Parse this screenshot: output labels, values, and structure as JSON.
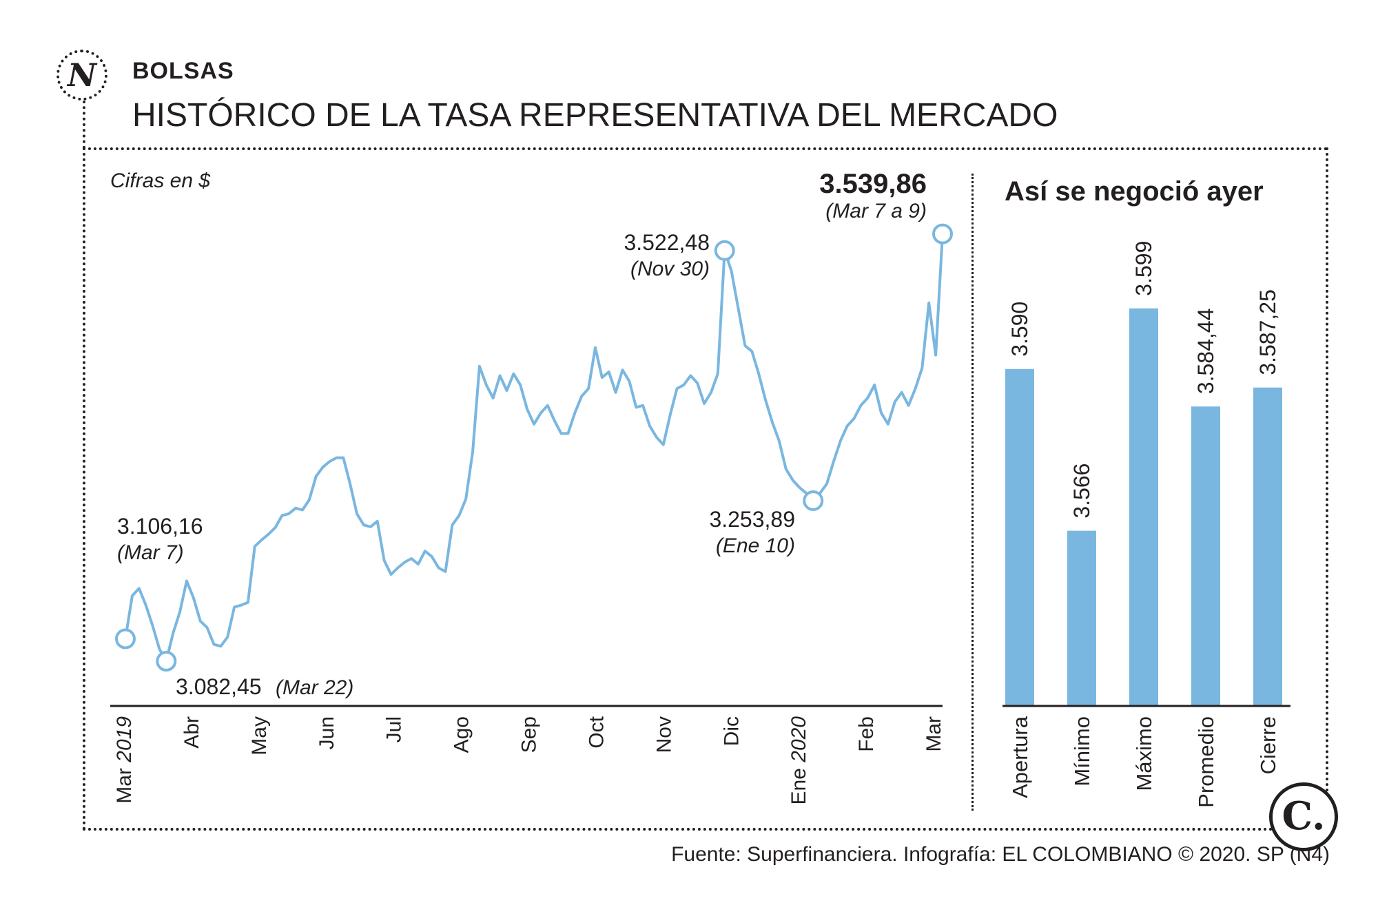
{
  "header": {
    "logo_letter": "N",
    "section": "BOLSAS",
    "title": "HISTÓRICO DE LA TASA REPRESENTATIVA DEL MERCADO"
  },
  "colors": {
    "line": "#7ab7e0",
    "bar": "#7ab7e0",
    "text": "#231f20"
  },
  "chart_data": [
    {
      "type": "line",
      "units_note": "Cifras en $",
      "x_labels": [
        {
          "month": "Mar",
          "year": "2019"
        },
        {
          "month": "Abr",
          "year": ""
        },
        {
          "month": "May",
          "year": ""
        },
        {
          "month": "Jun",
          "year": ""
        },
        {
          "month": "Jul",
          "year": ""
        },
        {
          "month": "Ago",
          "year": ""
        },
        {
          "month": "Sep",
          "year": ""
        },
        {
          "month": "Oct",
          "year": ""
        },
        {
          "month": "Nov",
          "year": ""
        },
        {
          "month": "Dic",
          "year": ""
        },
        {
          "month": "Ene",
          "year": "2020"
        },
        {
          "month": "Feb",
          "year": ""
        },
        {
          "month": "Mar",
          "year": ""
        }
      ],
      "series": [
        {
          "values": [
            3106,
            3152,
            3160,
            3142,
            3120,
            3095,
            3082,
            3112,
            3135,
            3168,
            3150,
            3125,
            3118,
            3100,
            3098,
            3108,
            3140,
            3142,
            3145,
            3205,
            3212,
            3218,
            3225,
            3238,
            3240,
            3246,
            3244,
            3255,
            3280,
            3290,
            3296,
            3300,
            3300,
            3272,
            3240,
            3228,
            3226,
            3232,
            3190,
            3175,
            3182,
            3188,
            3192,
            3186,
            3200,
            3194,
            3182,
            3178,
            3228,
            3238,
            3256,
            3306,
            3398,
            3378,
            3364,
            3388,
            3372,
            3390,
            3378,
            3352,
            3336,
            3348,
            3356,
            3340,
            3326,
            3326,
            3348,
            3366,
            3374,
            3418,
            3386,
            3392,
            3370,
            3394,
            3382,
            3354,
            3356,
            3334,
            3322,
            3314,
            3346,
            3374,
            3378,
            3388,
            3380,
            3358,
            3370,
            3390,
            3522,
            3500,
            3460,
            3420,
            3414,
            3390,
            3362,
            3338,
            3318,
            3288,
            3276,
            3268,
            3262,
            3254,
            3262,
            3272,
            3296,
            3318,
            3334,
            3342,
            3356,
            3364,
            3378,
            3348,
            3336,
            3360,
            3370,
            3356,
            3374,
            3396,
            3466,
            3410,
            3539.86
          ]
        }
      ],
      "annotations": [
        {
          "value": "3.106,16",
          "date": "(Mar 7)"
        },
        {
          "value": "3.082,45",
          "date": "(Mar 22)"
        },
        {
          "value": "3.522,48",
          "date": "(Nov 30)"
        },
        {
          "value": "3.253,89",
          "date": "(Ene 10)"
        },
        {
          "value": "3.539,86",
          "date": "(Mar 7 a 9)"
        }
      ],
      "grid": false
    },
    {
      "type": "bar",
      "title": "Así se negoció ayer",
      "categories": [
        "Apertura",
        "Mínimo",
        "Máximo",
        "Promedio",
        "Cierre"
      ],
      "values": [
        3590,
        3566,
        3599,
        3584.44,
        3587.25
      ],
      "value_labels": [
        "3.590",
        "3.566",
        "3.599",
        "3.584,44",
        "3.587,25"
      ]
    }
  ],
  "footer": {
    "source": "Fuente: Superfinanciera. Infografía: EL COLOMBIANO © 2020. SP (N4)",
    "badge_letter": "C."
  }
}
